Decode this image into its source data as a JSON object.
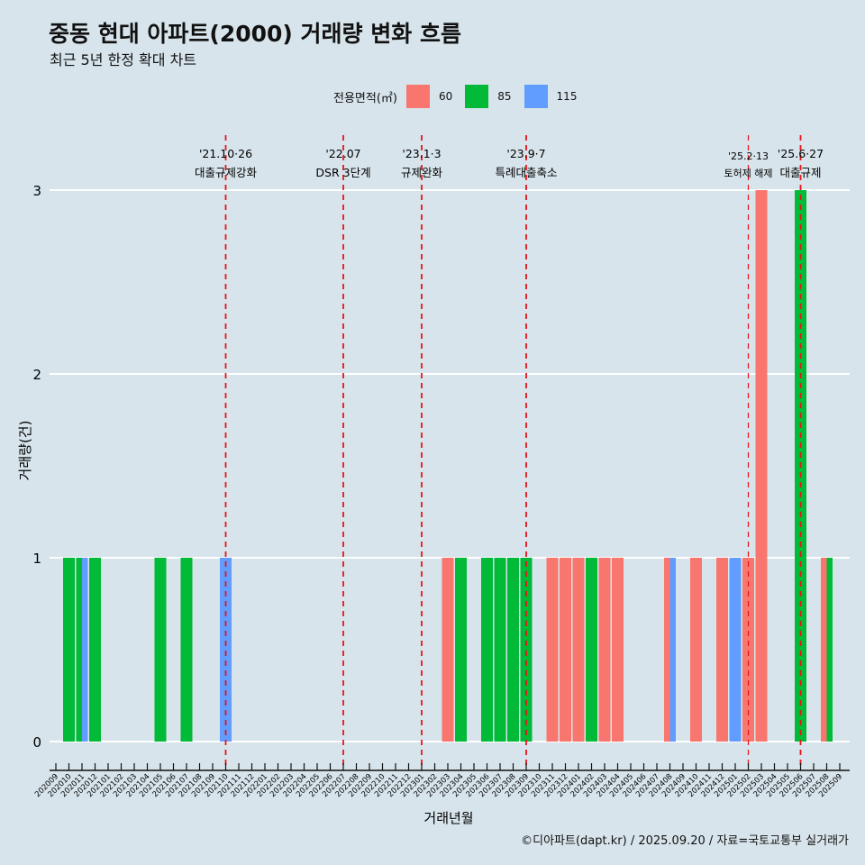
{
  "title": "중동 현대 아파트(2000) 거래량 변화 흐름",
  "subtitle": "최근 5년 한정 확대 차트",
  "caption": "©디아파트(dapt.kr) / 2025.09.20 / 자료=국토교통부 실거래가",
  "legend": {
    "title": "전용면적(㎡)",
    "items": [
      {
        "label": "60",
        "color": "#f8766d"
      },
      {
        "label": "85",
        "color": "#00ba38"
      },
      {
        "label": "115",
        "color": "#619cff"
      }
    ]
  },
  "chart_data": {
    "type": "bar",
    "xlabel": "거래년월",
    "ylabel": "거래량(건)",
    "ylim": [
      0,
      3
    ],
    "yticks": [
      "0",
      "1",
      "2",
      "3"
    ],
    "categories": [
      "202009",
      "202010",
      "202011",
      "202012",
      "202101",
      "202102",
      "202103",
      "202104",
      "202105",
      "202106",
      "202107",
      "202108",
      "202109",
      "202110",
      "202111",
      "202112",
      "202201",
      "202202",
      "202203",
      "202204",
      "202205",
      "202206",
      "202207",
      "202208",
      "202209",
      "202210",
      "202211",
      "202212",
      "202301",
      "202302",
      "202303",
      "202304",
      "202305",
      "202306",
      "202307",
      "202308",
      "202309",
      "202310",
      "202311",
      "202312",
      "202401",
      "202402",
      "202403",
      "202404",
      "202405",
      "202406",
      "202407",
      "202408",
      "202409",
      "202410",
      "202411",
      "202412",
      "202501",
      "202502",
      "202503",
      "202504",
      "202505",
      "202506",
      "202507",
      "202508",
      "202509"
    ],
    "bars": [
      {
        "month": "202010",
        "area": "85",
        "value": 1
      },
      {
        "month": "202011",
        "area": "85",
        "value": 1
      },
      {
        "month": "202011",
        "area": "115",
        "value": 1
      },
      {
        "month": "202012",
        "area": "85",
        "value": 1
      },
      {
        "month": "202105",
        "area": "85",
        "value": 1
      },
      {
        "month": "202107",
        "area": "85",
        "value": 1
      },
      {
        "month": "202110",
        "area": "115",
        "value": 1
      },
      {
        "month": "202303",
        "area": "60",
        "value": 1
      },
      {
        "month": "202304",
        "area": "85",
        "value": 1
      },
      {
        "month": "202306",
        "area": "85",
        "value": 1
      },
      {
        "month": "202307",
        "area": "85",
        "value": 1
      },
      {
        "month": "202308",
        "area": "85",
        "value": 1
      },
      {
        "month": "202309",
        "area": "85",
        "value": 1
      },
      {
        "month": "202311",
        "area": "60",
        "value": 1
      },
      {
        "month": "202312",
        "area": "60",
        "value": 1
      },
      {
        "month": "202401",
        "area": "60",
        "value": 1
      },
      {
        "month": "202402",
        "area": "85",
        "value": 1
      },
      {
        "month": "202403",
        "area": "60",
        "value": 1
      },
      {
        "month": "202404",
        "area": "60",
        "value": 1
      },
      {
        "month": "202408",
        "area": "60",
        "value": 1
      },
      {
        "month": "202408",
        "area": "115",
        "value": 1
      },
      {
        "month": "202410",
        "area": "60",
        "value": 1
      },
      {
        "month": "202412",
        "area": "60",
        "value": 1
      },
      {
        "month": "202501",
        "area": "115",
        "value": 1
      },
      {
        "month": "202502",
        "area": "60",
        "value": 1
      },
      {
        "month": "202503",
        "area": "60",
        "value": 3
      },
      {
        "month": "202506",
        "area": "85",
        "value": 3
      },
      {
        "month": "202508",
        "area": "60",
        "value": 1
      },
      {
        "month": "202508",
        "area": "85",
        "value": 1
      }
    ],
    "events": [
      {
        "month": "202110",
        "date": "'21.10·26",
        "label": "대출규제강화",
        "small": false
      },
      {
        "month": "202207",
        "date": "'22.07",
        "label": "DSR 3단계",
        "small": false
      },
      {
        "month": "202301",
        "date": "'23.1·3",
        "label": "규제완화",
        "small": false
      },
      {
        "month": "202309",
        "date": "'23.9·7",
        "label": "특례대출축소",
        "small": false
      },
      {
        "month": "202502",
        "date": "'25.2·13",
        "label": "토허제 해제",
        "small": true
      },
      {
        "month": "202506",
        "date": "'25.6·27",
        "label": "대출규제",
        "small": false
      }
    ]
  }
}
